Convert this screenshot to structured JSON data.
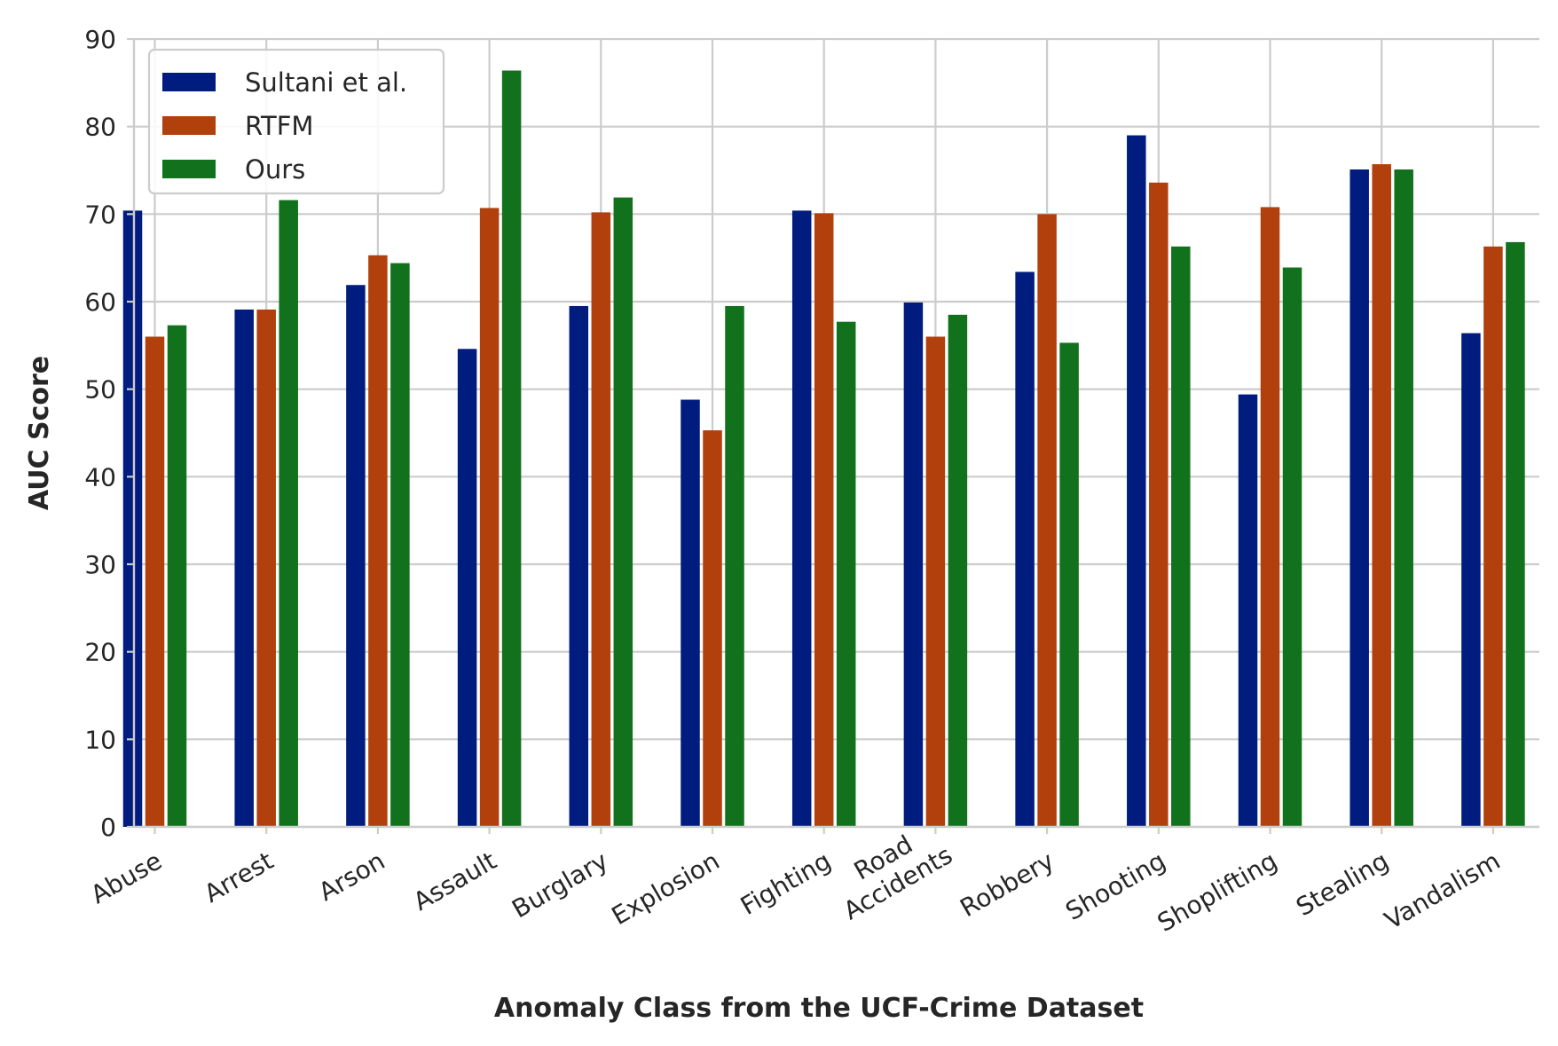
{
  "chart_data": {
    "type": "bar",
    "title": "",
    "xlabel": "Anomaly Class from the UCF-Crime Dataset",
    "ylabel": "AUC Score",
    "ylim": [
      0,
      90
    ],
    "yticks": [
      0,
      10,
      20,
      30,
      40,
      50,
      60,
      70,
      80,
      90
    ],
    "grid": true,
    "legend_position": "top-left",
    "categories": [
      [
        "Abuse"
      ],
      [
        "Arrest"
      ],
      [
        "Arson"
      ],
      [
        "Assault"
      ],
      [
        "Burglary"
      ],
      [
        "Explosion"
      ],
      [
        "Fighting"
      ],
      [
        "Road",
        "Accidents"
      ],
      [
        "Robbery"
      ],
      [
        "Shooting"
      ],
      [
        "Shoplifting"
      ],
      [
        "Stealing"
      ],
      [
        "Vandalism"
      ]
    ],
    "series": [
      {
        "name": "Sultani et al.",
        "color": "#001c7f",
        "values": [
          70.4,
          59.1,
          61.9,
          54.6,
          59.5,
          48.8,
          70.4,
          59.9,
          63.4,
          79.0,
          49.4,
          75.1,
          56.4
        ]
      },
      {
        "name": "RTFM",
        "color": "#b1400d",
        "values": [
          56.0,
          59.1,
          65.3,
          70.7,
          70.2,
          45.3,
          70.1,
          56.0,
          70.0,
          73.6,
          70.8,
          75.7,
          66.3
        ]
      },
      {
        "name": "Ours",
        "color": "#12711c",
        "values": [
          57.3,
          71.6,
          64.4,
          86.4,
          71.9,
          59.5,
          57.7,
          58.5,
          55.3,
          66.3,
          63.9,
          75.1,
          66.8
        ]
      }
    ]
  }
}
